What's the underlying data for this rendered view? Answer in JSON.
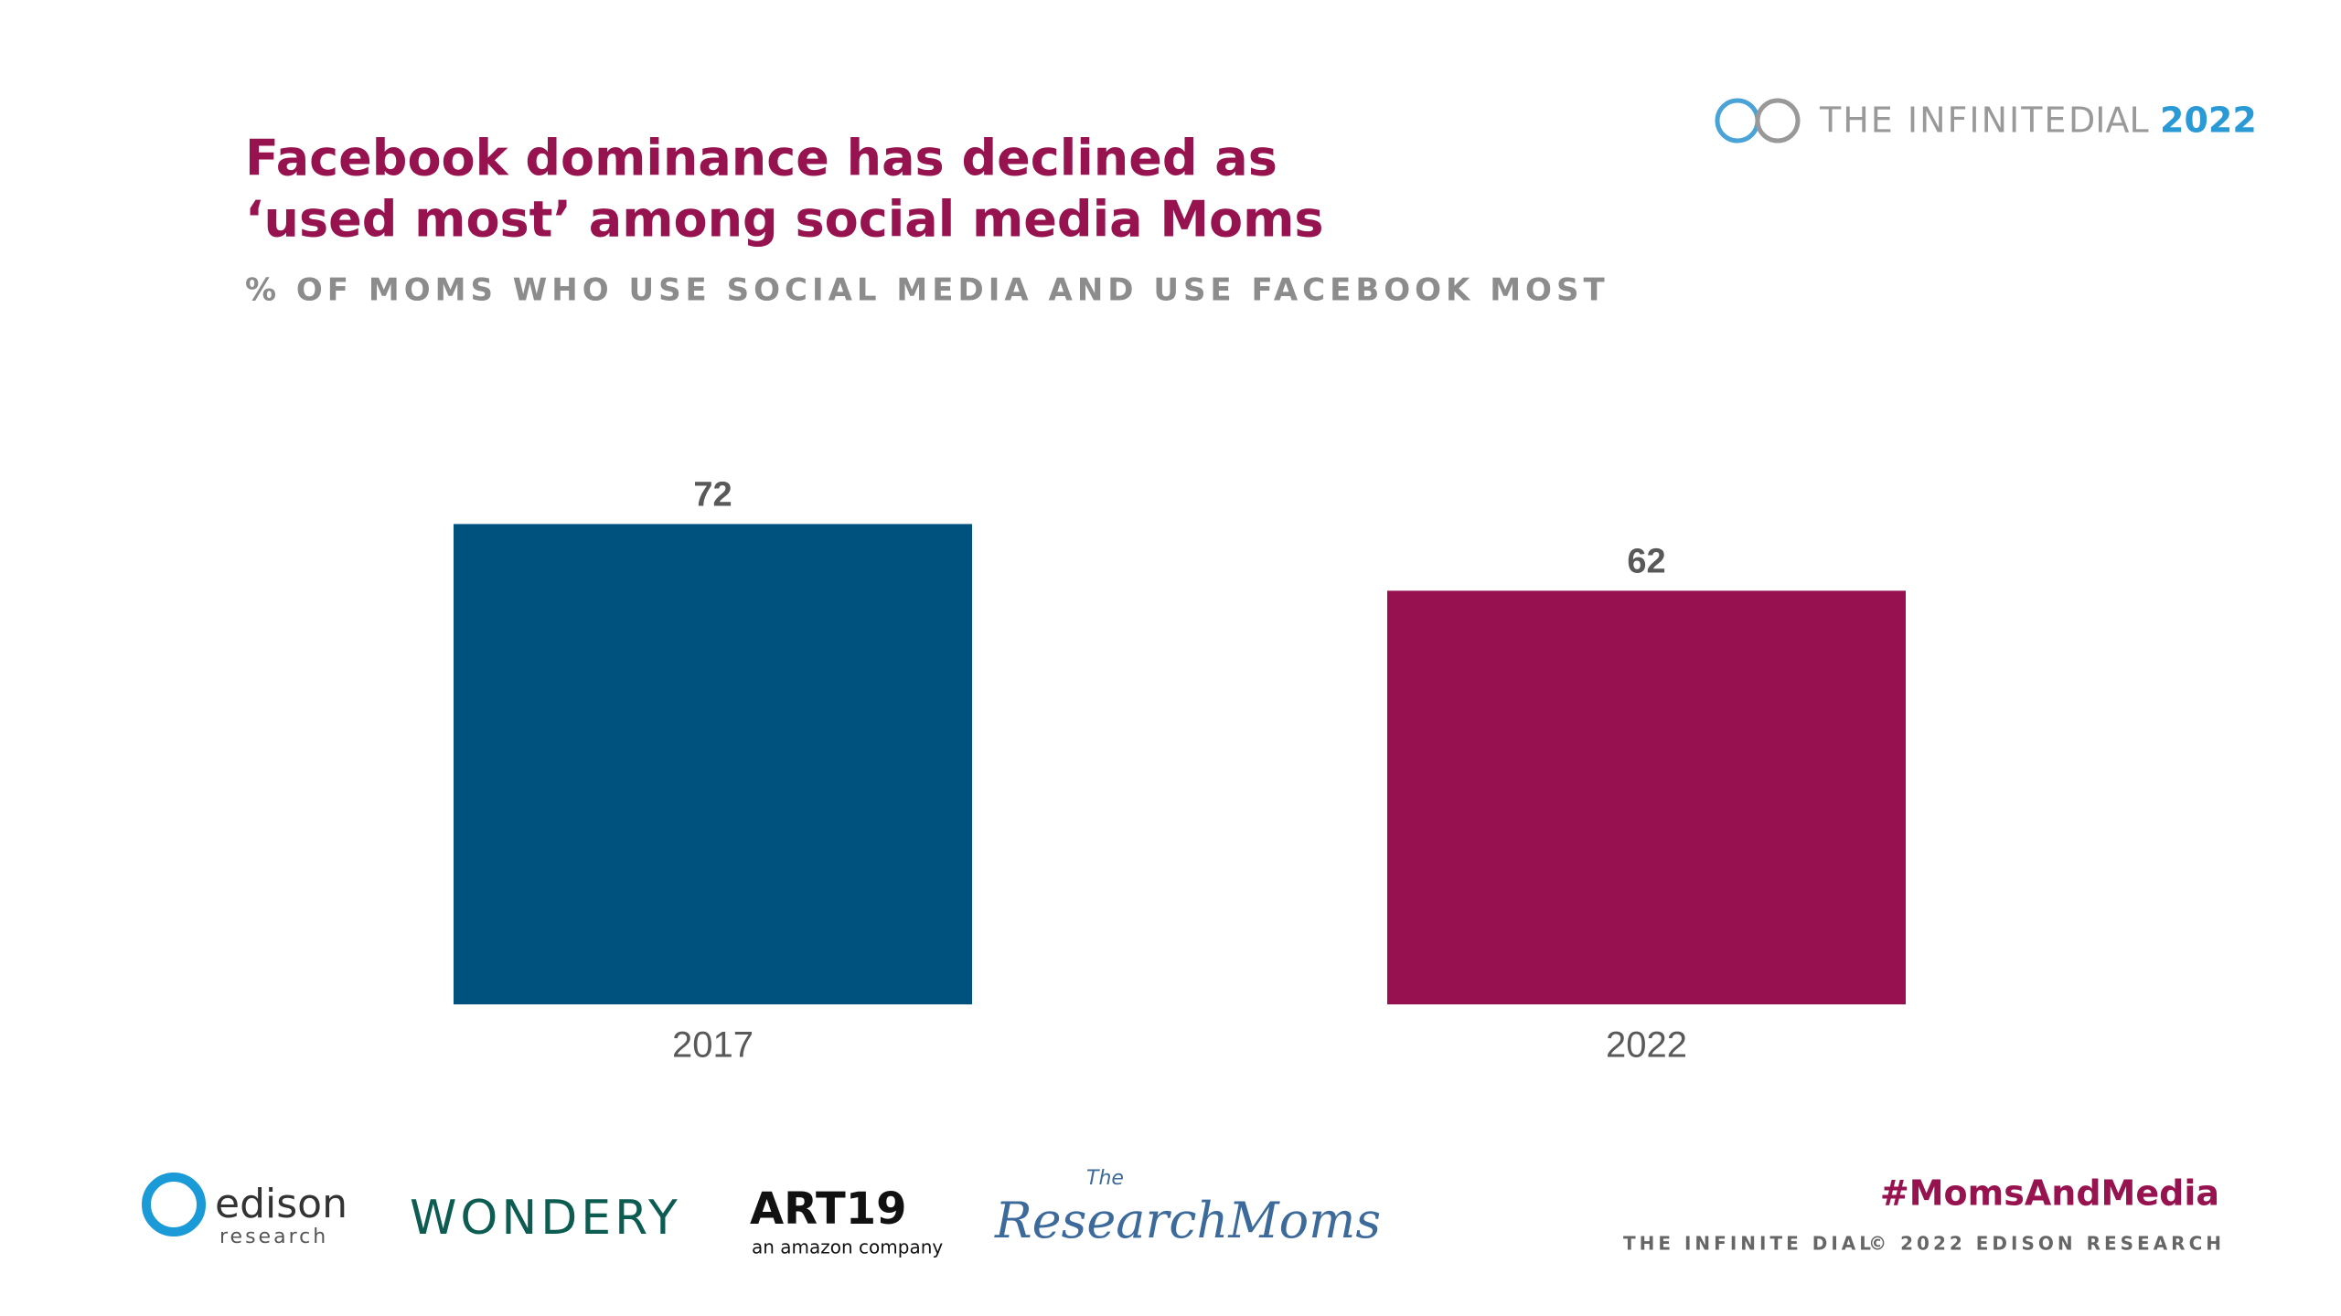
{
  "chart_data": {
    "type": "bar",
    "title": [
      "Facebook dominance has declined as",
      "‘used most’ among social media Moms"
    ],
    "subtitle": "% OF MOMS WHO USE SOCIAL MEDIA AND USE FACEBOOK MOST",
    "categories": [
      "2017",
      "2022"
    ],
    "values": [
      72,
      62
    ],
    "colors": [
      "#00527e",
      "#97104f"
    ]
  },
  "branding": {
    "dial": "THE INFINITE",
    "dial2": "DIAL",
    "dial_year": "2022",
    "edison": "edison",
    "edison_sub": "research",
    "wondery": "WONDERY",
    "art19": "ART19",
    "art19_sub": "an amazon company",
    "moms_the": "The",
    "moms": "ResearchMoms",
    "hashtag": "#MomsAndMedia",
    "footer_left": "THE INFINITE DIAL",
    "footer_right": "© 2022 EDISON RESEARCH"
  }
}
